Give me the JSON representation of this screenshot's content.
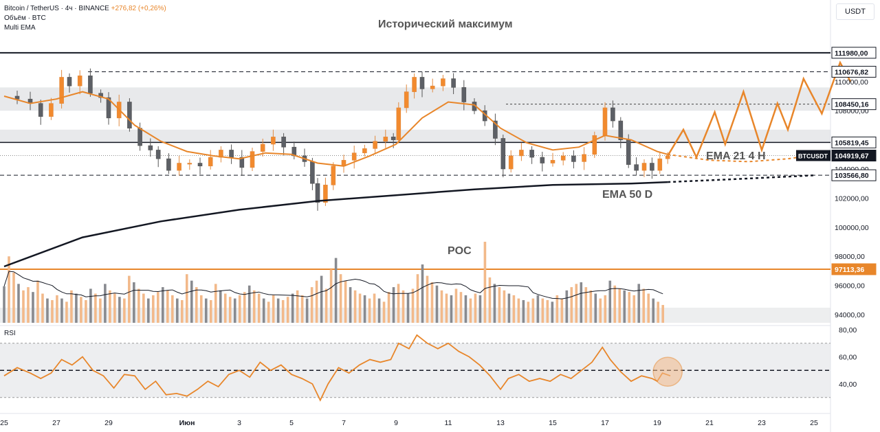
{
  "legend": {
    "symbol": "Bitcoin / TetherUS · 4ч · BINANCE",
    "change": "+276,82 (+0,26%)",
    "volume": "Объём · BTC",
    "indicator": "Multi EMA"
  },
  "unit": "USDT",
  "rsi_title": "RSI",
  "annotations": {
    "ath": "Исторический максимум",
    "poc": "POC",
    "ema21": "EMA 21 4 H",
    "ema50": "EMA 50 D"
  },
  "colors": {
    "up": "#f2b98a",
    "down": "#888a8f",
    "orange": "#e8862a",
    "black": "#131722",
    "zone": "#dcdde0"
  },
  "price_labels": [
    {
      "text": "111980,00",
      "value": 111980,
      "style": "white"
    },
    {
      "text": "110676,82",
      "value": 110676.82,
      "style": "white"
    },
    {
      "text": "108450,16",
      "value": 108450.16,
      "style": "white"
    },
    {
      "text": "105819,45",
      "value": 105819.45,
      "style": "white"
    },
    {
      "text": "104919,67",
      "value": 104919.67,
      "style": "black",
      "tag": "BTCUSDT"
    },
    {
      "text": "103566,80",
      "value": 103566.8,
      "style": "white"
    },
    {
      "text": "97113,36",
      "value": 97113.36,
      "style": "orange"
    }
  ],
  "chart_data": {
    "type": "candlestick",
    "y_ticks": [
      94000,
      96000,
      98000,
      100000,
      102000,
      104000,
      106000,
      108000,
      110000
    ],
    "y_tick_labels": [
      "94000,00",
      "96000,00",
      "98000,00",
      "100000,00",
      "102000,00",
      "104000,00",
      "106000,00",
      "108000,00",
      "110000,00"
    ],
    "x_tick_labels": [
      "25",
      "27",
      "29",
      "Июн",
      "3",
      "5",
      "7",
      "9",
      "11",
      "13",
      "15",
      "17",
      "19",
      "21",
      "23",
      "25"
    ],
    "x_tick_days": [
      0,
      2,
      4,
      7,
      9,
      11,
      13,
      15,
      17,
      19,
      21,
      23,
      25,
      27,
      29,
      31
    ],
    "x_start": "May 25",
    "levels": {
      "ath": 111980,
      "resistance": 110676.82,
      "mid": 108450.16,
      "pivot": 105819.45,
      "support": 103566.8,
      "poc": 97113.36
    },
    "zones": [
      [
        108000,
        109600
      ],
      [
        105800,
        106700
      ]
    ],
    "price_close": [
      {
        "d": 0.0,
        "p": 109000
      },
      {
        "d": 0.5,
        "p": 108800
      },
      {
        "d": 1.0,
        "p": 108500
      },
      {
        "d": 1.4,
        "p": 107600
      },
      {
        "d": 1.8,
        "p": 108500
      },
      {
        "d": 2.2,
        "p": 110300
      },
      {
        "d": 2.5,
        "p": 109700
      },
      {
        "d": 2.9,
        "p": 110400
      },
      {
        "d": 3.3,
        "p": 109200
      },
      {
        "d": 3.7,
        "p": 108900
      },
      {
        "d": 4.0,
        "p": 107500
      },
      {
        "d": 4.4,
        "p": 108600
      },
      {
        "d": 4.8,
        "p": 106800
      },
      {
        "d": 5.2,
        "p": 105600
      },
      {
        "d": 5.6,
        "p": 105300
      },
      {
        "d": 5.9,
        "p": 104700
      },
      {
        "d": 6.3,
        "p": 103900
      },
      {
        "d": 6.7,
        "p": 104400
      },
      {
        "d": 7.1,
        "p": 104400
      },
      {
        "d": 7.5,
        "p": 104200
      },
      {
        "d": 7.9,
        "p": 104800
      },
      {
        "d": 8.3,
        "p": 105300
      },
      {
        "d": 8.7,
        "p": 104800
      },
      {
        "d": 9.1,
        "p": 104100
      },
      {
        "d": 9.5,
        "p": 105200
      },
      {
        "d": 9.9,
        "p": 105700
      },
      {
        "d": 10.3,
        "p": 106200
      },
      {
        "d": 10.7,
        "p": 105500
      },
      {
        "d": 11.1,
        "p": 104900
      },
      {
        "d": 11.5,
        "p": 104500
      },
      {
        "d": 11.8,
        "p": 103000
      },
      {
        "d": 12.0,
        "p": 101700
      },
      {
        "d": 12.3,
        "p": 102900
      },
      {
        "d": 12.6,
        "p": 104200
      },
      {
        "d": 13.0,
        "p": 104600
      },
      {
        "d": 13.4,
        "p": 105100
      },
      {
        "d": 13.8,
        "p": 105400
      },
      {
        "d": 14.2,
        "p": 105900
      },
      {
        "d": 14.6,
        "p": 106200
      },
      {
        "d": 14.9,
        "p": 106000
      },
      {
        "d": 15.1,
        "p": 108200
      },
      {
        "d": 15.4,
        "p": 109300
      },
      {
        "d": 15.7,
        "p": 110300
      },
      {
        "d": 16.0,
        "p": 109500
      },
      {
        "d": 16.4,
        "p": 109700
      },
      {
        "d": 16.8,
        "p": 110200
      },
      {
        "d": 17.2,
        "p": 109600
      },
      {
        "d": 17.6,
        "p": 108600
      },
      {
        "d": 18.0,
        "p": 108000
      },
      {
        "d": 18.4,
        "p": 107300
      },
      {
        "d": 18.8,
        "p": 106100
      },
      {
        "d": 19.1,
        "p": 104000
      },
      {
        "d": 19.4,
        "p": 104900
      },
      {
        "d": 19.8,
        "p": 105300
      },
      {
        "d": 20.2,
        "p": 104800
      },
      {
        "d": 20.6,
        "p": 104400
      },
      {
        "d": 21.0,
        "p": 104600
      },
      {
        "d": 21.4,
        "p": 104900
      },
      {
        "d": 21.8,
        "p": 104500
      },
      {
        "d": 22.2,
        "p": 105000
      },
      {
        "d": 22.6,
        "p": 106300
      },
      {
        "d": 23.0,
        "p": 108200
      },
      {
        "d": 23.3,
        "p": 107300
      },
      {
        "d": 23.6,
        "p": 106000
      },
      {
        "d": 23.9,
        "p": 104300
      },
      {
        "d": 24.2,
        "p": 103900
      },
      {
        "d": 24.5,
        "p": 104400
      },
      {
        "d": 24.8,
        "p": 103900
      },
      {
        "d": 25.1,
        "p": 104700
      },
      {
        "d": 25.4,
        "p": 104900
      }
    ],
    "ema21": [
      {
        "d": 0.0,
        "p": 109000
      },
      {
        "d": 1.0,
        "p": 108500
      },
      {
        "d": 2.0,
        "p": 108800
      },
      {
        "d": 3.0,
        "p": 109300
      },
      {
        "d": 4.0,
        "p": 108800
      },
      {
        "d": 5.0,
        "p": 107000
      },
      {
        "d": 6.0,
        "p": 105900
      },
      {
        "d": 7.0,
        "p": 105200
      },
      {
        "d": 8.0,
        "p": 104900
      },
      {
        "d": 9.0,
        "p": 104700
      },
      {
        "d": 10.0,
        "p": 105100
      },
      {
        "d": 11.0,
        "p": 105000
      },
      {
        "d": 12.0,
        "p": 104400
      },
      {
        "d": 13.0,
        "p": 104200
      },
      {
        "d": 14.0,
        "p": 104900
      },
      {
        "d": 15.0,
        "p": 105700
      },
      {
        "d": 16.0,
        "p": 107500
      },
      {
        "d": 17.0,
        "p": 108600
      },
      {
        "d": 18.0,
        "p": 108400
      },
      {
        "d": 19.0,
        "p": 106800
      },
      {
        "d": 20.0,
        "p": 105800
      },
      {
        "d": 21.0,
        "p": 105300
      },
      {
        "d": 22.0,
        "p": 105500
      },
      {
        "d": 23.0,
        "p": 106300
      },
      {
        "d": 24.0,
        "p": 106000
      },
      {
        "d": 25.0,
        "p": 105200
      },
      {
        "d": 25.4,
        "p": 105000
      }
    ],
    "ema21_projection": [
      {
        "d": 25.4,
        "p": 105000
      },
      {
        "d": 27.0,
        "p": 104600
      },
      {
        "d": 28.5,
        "p": 104500
      },
      {
        "d": 30.0,
        "p": 104700
      },
      {
        "d": 31.0,
        "p": 104950
      }
    ],
    "ema50": [
      {
        "d": 0.0,
        "p": 97300
      },
      {
        "d": 3.0,
        "p": 99300
      },
      {
        "d": 6.0,
        "p": 100400
      },
      {
        "d": 9.0,
        "p": 101200
      },
      {
        "d": 12.0,
        "p": 101800
      },
      {
        "d": 15.0,
        "p": 102200
      },
      {
        "d": 18.0,
        "p": 102600
      },
      {
        "d": 21.0,
        "p": 102900
      },
      {
        "d": 24.0,
        "p": 103000
      },
      {
        "d": 25.4,
        "p": 103100
      }
    ],
    "ema50_projection": [
      {
        "d": 25.4,
        "p": 103100
      },
      {
        "d": 28.0,
        "p": 103300
      },
      {
        "d": 31.0,
        "p": 103560
      }
    ],
    "forecast": [
      {
        "d": 25.4,
        "p": 104900
      },
      {
        "d": 26.0,
        "p": 106700
      },
      {
        "d": 26.5,
        "p": 104800
      },
      {
        "d": 27.2,
        "p": 107900
      },
      {
        "d": 27.6,
        "p": 105700
      },
      {
        "d": 28.3,
        "p": 109300
      },
      {
        "d": 29.0,
        "p": 105300
      },
      {
        "d": 29.6,
        "p": 108500
      },
      {
        "d": 30.0,
        "p": 106700
      },
      {
        "d": 30.6,
        "p": 110200
      },
      {
        "d": 31.3,
        "p": 107800
      },
      {
        "d": 32.0,
        "p": 111300
      },
      {
        "d": 32.4,
        "p": 110000
      }
    ],
    "volume": [
      0.45,
      0.82,
      0.62,
      0.48,
      0.4,
      0.44,
      0.38,
      0.52,
      0.36,
      0.3,
      0.28,
      0.34,
      0.3,
      0.26,
      0.4,
      0.36,
      0.32,
      0.28,
      0.42,
      0.36,
      0.3,
      0.48,
      0.4,
      0.36,
      0.32,
      0.3,
      0.58,
      0.5,
      0.42,
      0.36,
      0.3,
      0.34,
      0.38,
      0.44,
      0.4,
      0.34,
      0.3,
      0.28,
      0.6,
      0.52,
      0.44,
      0.34,
      0.3,
      0.28,
      0.48,
      0.4,
      0.36,
      0.32,
      0.3,
      0.34,
      0.38,
      0.46,
      0.4,
      0.36,
      0.3,
      0.26,
      0.34,
      0.3,
      0.28,
      0.32,
      0.36,
      0.4,
      0.34,
      0.3,
      0.44,
      0.52,
      0.58,
      0.42,
      0.66,
      0.8,
      0.6,
      0.52,
      0.44,
      0.4,
      0.36,
      0.34,
      0.3,
      0.36,
      0.3,
      0.26,
      0.38,
      0.44,
      0.48,
      0.4,
      0.36,
      0.42,
      0.6,
      0.72,
      0.58,
      0.5,
      0.46,
      0.4,
      0.36,
      0.34,
      0.42,
      0.38,
      0.34,
      0.3,
      0.36,
      0.34,
      1.0,
      0.56,
      0.48,
      0.44,
      0.4,
      0.36,
      0.34,
      0.3,
      0.28,
      0.26,
      0.3,
      0.34,
      0.3,
      0.28,
      0.26,
      0.34,
      0.3,
      0.4,
      0.44,
      0.48,
      0.5,
      0.44,
      0.4,
      0.36,
      0.3,
      0.34,
      0.52,
      0.46,
      0.42,
      0.4,
      0.38,
      0.34,
      0.48,
      0.42,
      0.36,
      0.3,
      0.26,
      0.22
    ],
    "rsi": {
      "ylim": [
        25,
        80
      ],
      "ticks": [
        40,
        60,
        80
      ],
      "tick_labels": [
        "40,00",
        "60,00",
        "80,00"
      ],
      "band": [
        30,
        70
      ],
      "midline": 50,
      "values": [
        {
          "d": 0.0,
          "p": 46
        },
        {
          "d": 0.5,
          "p": 52
        },
        {
          "d": 1.0,
          "p": 48
        },
        {
          "d": 1.4,
          "p": 44
        },
        {
          "d": 1.8,
          "p": 48
        },
        {
          "d": 2.2,
          "p": 58
        },
        {
          "d": 2.6,
          "p": 54
        },
        {
          "d": 3.0,
          "p": 60
        },
        {
          "d": 3.4,
          "p": 50
        },
        {
          "d": 3.8,
          "p": 46
        },
        {
          "d": 4.2,
          "p": 37
        },
        {
          "d": 4.6,
          "p": 47
        },
        {
          "d": 5.0,
          "p": 46
        },
        {
          "d": 5.4,
          "p": 36
        },
        {
          "d": 5.8,
          "p": 42
        },
        {
          "d": 6.2,
          "p": 32
        },
        {
          "d": 6.6,
          "p": 33
        },
        {
          "d": 7.0,
          "p": 31
        },
        {
          "d": 7.4,
          "p": 36
        },
        {
          "d": 7.8,
          "p": 42
        },
        {
          "d": 8.2,
          "p": 38
        },
        {
          "d": 8.6,
          "p": 47
        },
        {
          "d": 9.0,
          "p": 50
        },
        {
          "d": 9.4,
          "p": 45
        },
        {
          "d": 9.8,
          "p": 56
        },
        {
          "d": 10.2,
          "p": 50
        },
        {
          "d": 10.6,
          "p": 54
        },
        {
          "d": 11.0,
          "p": 47
        },
        {
          "d": 11.4,
          "p": 44
        },
        {
          "d": 11.8,
          "p": 40
        },
        {
          "d": 12.1,
          "p": 28
        },
        {
          "d": 12.4,
          "p": 40
        },
        {
          "d": 12.8,
          "p": 52
        },
        {
          "d": 13.2,
          "p": 48
        },
        {
          "d": 13.6,
          "p": 54
        },
        {
          "d": 14.0,
          "p": 58
        },
        {
          "d": 14.4,
          "p": 56
        },
        {
          "d": 14.8,
          "p": 58
        },
        {
          "d": 15.1,
          "p": 70
        },
        {
          "d": 15.5,
          "p": 66
        },
        {
          "d": 15.8,
          "p": 76
        },
        {
          "d": 16.2,
          "p": 70
        },
        {
          "d": 16.6,
          "p": 66
        },
        {
          "d": 17.0,
          "p": 70
        },
        {
          "d": 17.4,
          "p": 64
        },
        {
          "d": 17.8,
          "p": 60
        },
        {
          "d": 18.2,
          "p": 54
        },
        {
          "d": 18.6,
          "p": 46
        },
        {
          "d": 19.0,
          "p": 36
        },
        {
          "d": 19.3,
          "p": 44
        },
        {
          "d": 19.7,
          "p": 47
        },
        {
          "d": 20.1,
          "p": 42
        },
        {
          "d": 20.5,
          "p": 44
        },
        {
          "d": 20.9,
          "p": 42
        },
        {
          "d": 21.3,
          "p": 47
        },
        {
          "d": 21.7,
          "p": 44
        },
        {
          "d": 22.1,
          "p": 50
        },
        {
          "d": 22.5,
          "p": 56
        },
        {
          "d": 22.9,
          "p": 67
        },
        {
          "d": 23.2,
          "p": 58
        },
        {
          "d": 23.6,
          "p": 49
        },
        {
          "d": 24.0,
          "p": 42
        },
        {
          "d": 24.4,
          "p": 46
        },
        {
          "d": 24.8,
          "p": 44
        },
        {
          "d": 25.0,
          "p": 42
        },
        {
          "d": 25.2,
          "p": 48
        },
        {
          "d": 25.5,
          "p": 46
        }
      ]
    }
  }
}
